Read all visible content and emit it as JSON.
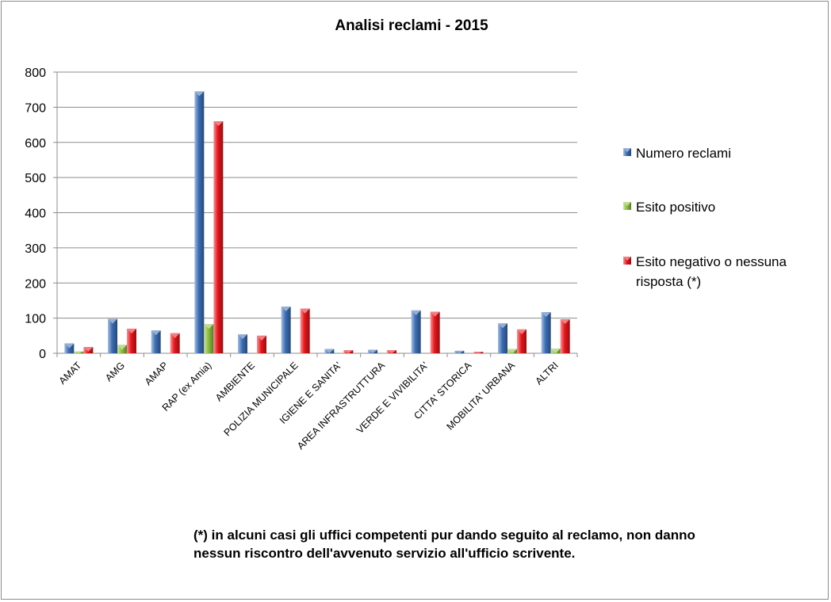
{
  "chart_data": {
    "type": "bar",
    "title": "Analisi reclami - 2015",
    "categories": [
      "AMAT",
      "AMG",
      "AMAP",
      "RAP (ex Amia)",
      "AMBIENTE",
      "POLIZIA MUNICIPALE",
      "IGIENE E SANITA'",
      "AREA INFRASTRUTTURA",
      "VERDE E VIVIBILITA'",
      "CITTA' STORICA",
      "MOBILITA' URBANA",
      "ALTRI"
    ],
    "series": [
      {
        "name": "Numero reclami",
        "color": "#3a6db5",
        "values": [
          28,
          98,
          65,
          745,
          54,
          133,
          12,
          10,
          122,
          7,
          85,
          117
        ]
      },
      {
        "name": "Esito positivo",
        "color": "#8bbf3c",
        "values": [
          5,
          24,
          0,
          83,
          0,
          0,
          0,
          0,
          0,
          0,
          12,
          13
        ]
      },
      {
        "name": "Esito negativo o nessuna risposta (*)",
        "legend_lines": [
          "Esito negativo o nessuna",
          "risposta (*)"
        ],
        "color": "#e8141a",
        "values": [
          18,
          70,
          57,
          660,
          50,
          127,
          9,
          9,
          118,
          4,
          68,
          97
        ]
      }
    ],
    "yticks": [
      "0",
      "100",
      "200",
      "300",
      "400",
      "500",
      "600",
      "700",
      "800"
    ],
    "ylim": [
      0,
      800
    ],
    "grid": true,
    "legend_position": "right"
  },
  "footnote": {
    "marker": "(*)",
    "line1": " in alcuni casi gli uffici competenti pur dando seguito al reclamo, non danno",
    "line2": "nessun riscontro dell'avvenuto servizio all'ufficio scrivente."
  }
}
